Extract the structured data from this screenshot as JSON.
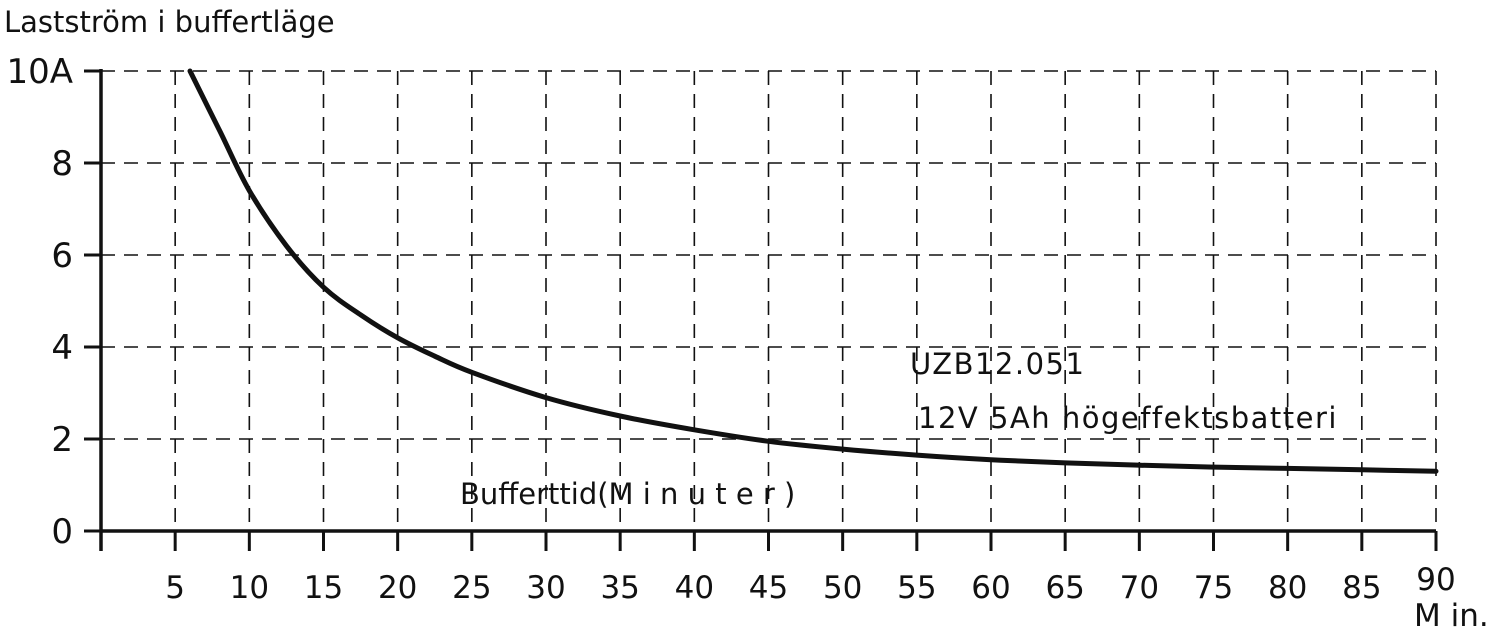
{
  "chart_data": {
    "type": "line",
    "ylabel": "Lastström i buffertläge",
    "xlabel": "Bufferttid(M i n u t e r )",
    "x_unit": "M in.",
    "y_unit_suffix": "A",
    "xlim": [
      0,
      90
    ],
    "ylim": [
      0,
      10
    ],
    "x_ticks": [
      5,
      10,
      15,
      20,
      25,
      30,
      35,
      40,
      45,
      50,
      55,
      60,
      65,
      70,
      75,
      80,
      85,
      90
    ],
    "y_ticks": [
      0,
      2,
      4,
      6,
      8,
      10
    ],
    "y_tick_labels": [
      "0",
      "2",
      "4",
      "6",
      "8",
      "10A"
    ],
    "grid": true,
    "annotations": [
      "UZB12.051",
      "12V 5Ah högeffektsbatteri"
    ],
    "series": [
      {
        "x": [
          6,
          8,
          10,
          12.5,
          15,
          17.5,
          20,
          22.5,
          25,
          30,
          35,
          40,
          45,
          50,
          55,
          60,
          65,
          70,
          75,
          80,
          85,
          90
        ],
        "y": [
          10,
          8.7,
          7.4,
          6.2,
          5.3,
          4.7,
          4.2,
          3.8,
          3.45,
          2.9,
          2.5,
          2.2,
          1.95,
          1.78,
          1.65,
          1.55,
          1.48,
          1.43,
          1.39,
          1.36,
          1.33,
          1.3
        ]
      }
    ],
    "color": "#111111"
  }
}
